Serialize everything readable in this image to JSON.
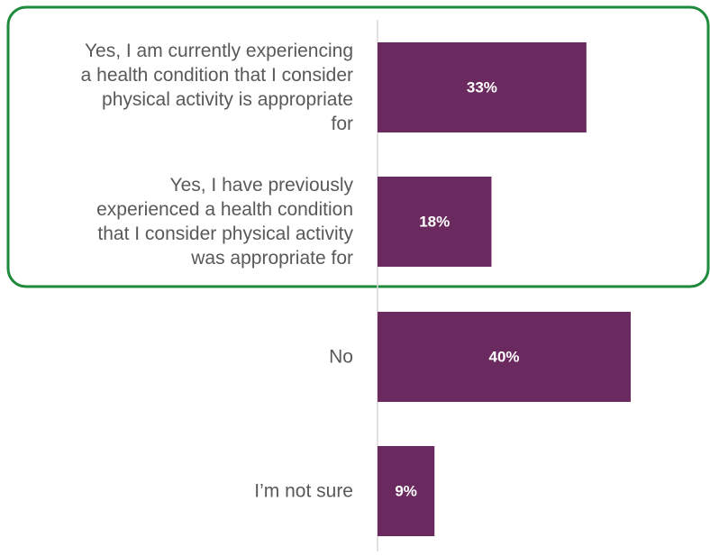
{
  "colors": {
    "bar": "#6b2a5f",
    "highlight_border": "#1e8a3c",
    "axis": "#d9d9d9",
    "label_text": "#595959",
    "data_label_text": "#ffffff"
  },
  "chart_data": {
    "type": "bar",
    "orientation": "horizontal",
    "categories": [
      "Yes, I am currently experiencing a health condition that I consider physical activity is appropriate for",
      "Yes, I have previously experienced a health condition that I consider physical activity was appropriate for",
      "No",
      "I’m not sure"
    ],
    "category_lines": [
      [
        "Yes, I am currently experiencing",
        "a health condition that I consider",
        "physical activity is appropriate",
        "for"
      ],
      [
        "Yes, I have previously",
        "experienced a health condition",
        "that I consider physical activity",
        "was appropriate for"
      ],
      [
        "No"
      ],
      [
        "I’m not sure"
      ]
    ],
    "values": [
      33,
      18,
      40,
      9
    ],
    "data_labels": [
      "33%",
      "18%",
      "40%",
      "9%"
    ],
    "xlim": [
      0,
      40
    ],
    "title": "",
    "xlabel": "",
    "ylabel": "",
    "legend": "none",
    "grid": false,
    "highlight": {
      "categories": [
        0,
        1
      ],
      "style": "rounded green outline"
    }
  }
}
